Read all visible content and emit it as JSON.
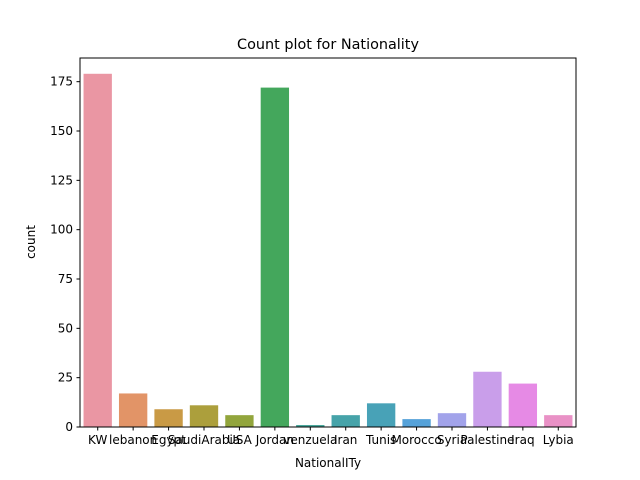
{
  "chart_data": {
    "type": "bar",
    "title": "Count plot for Nationality",
    "xlabel": "NationalITy",
    "ylabel": "count",
    "categories": [
      "KW",
      "lebanon",
      "Egypt",
      "SaudiArabia",
      "USA",
      "Jordan",
      "venzuela",
      "Iran",
      "Tunis",
      "Morocco",
      "Syria",
      "Palestine",
      "Iraq",
      "Lybia"
    ],
    "values": [
      179,
      17,
      9,
      11,
      6,
      172,
      1,
      6,
      12,
      4,
      7,
      28,
      22,
      6
    ],
    "colors": [
      "#ea96a3",
      "#e29467",
      "#c99a45",
      "#ac9f3c",
      "#92a53c",
      "#44a75c",
      "#45a69a",
      "#46a3a9",
      "#48a2b7",
      "#56a2d9",
      "#a2a3ea",
      "#c99eea",
      "#e68ae5",
      "#e991c6"
    ],
    "ylim": [
      0,
      187
    ],
    "yticks": [
      0,
      25,
      50,
      75,
      100,
      125,
      150,
      175
    ],
    "grid": false,
    "legend": "none"
  }
}
